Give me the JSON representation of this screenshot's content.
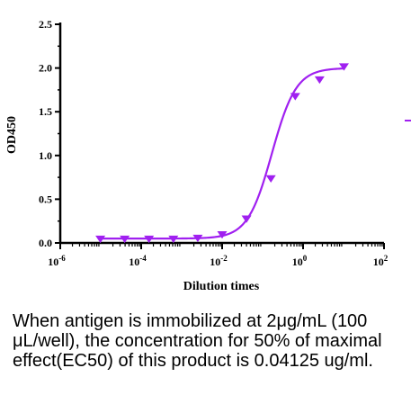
{
  "chart_data": {
    "type": "scatter",
    "xlabel": "Dilution times",
    "ylabel": "OD450",
    "x_scale": "log",
    "xlim": [
      1e-06,
      100
    ],
    "ylim": [
      0,
      2.5
    ],
    "x_ticks": [
      {
        "value": 1e-06,
        "base": "10",
        "exp": "-6"
      },
      {
        "value": 0.0001,
        "base": "10",
        "exp": "-4"
      },
      {
        "value": 0.01,
        "base": "10",
        "exp": "-2"
      },
      {
        "value": 1,
        "base": "10",
        "exp": "0"
      },
      {
        "value": 100,
        "base": "10",
        "exp": "2"
      }
    ],
    "y_ticks": [
      {
        "value": 0,
        "label": "0.0"
      },
      {
        "value": 0.5,
        "label": "0.5"
      },
      {
        "value": 1.0,
        "label": "1.0"
      },
      {
        "value": 1.5,
        "label": "1.5"
      },
      {
        "value": 2.0,
        "label": "2.0"
      },
      {
        "value": 2.5,
        "label": "2.5"
      }
    ],
    "color": "#a020f0",
    "marker": "triangle-down",
    "fit": "four-parameter-logistic",
    "series": [
      {
        "points": [
          {
            "x": 9.8e-06,
            "y": 0.05
          },
          {
            "x": 3.91e-05,
            "y": 0.05
          },
          {
            "x": 0.000156,
            "y": 0.05
          },
          {
            "x": 0.000625,
            "y": 0.05
          },
          {
            "x": 0.0025,
            "y": 0.06
          },
          {
            "x": 0.01,
            "y": 0.1
          },
          {
            "x": 0.04,
            "y": 0.28
          },
          {
            "x": 0.16,
            "y": 0.74
          },
          {
            "x": 0.64,
            "y": 1.68
          },
          {
            "x": 2.56,
            "y": 1.87
          },
          {
            "x": 10.24,
            "y": 2.02
          }
        ]
      }
    ]
  },
  "caption": "When antigen is immobilized at 2μg/mL (100 μL/well), the concentration for 50% of maximal effect(EC50) of this product is 0.04125 ug/ml."
}
